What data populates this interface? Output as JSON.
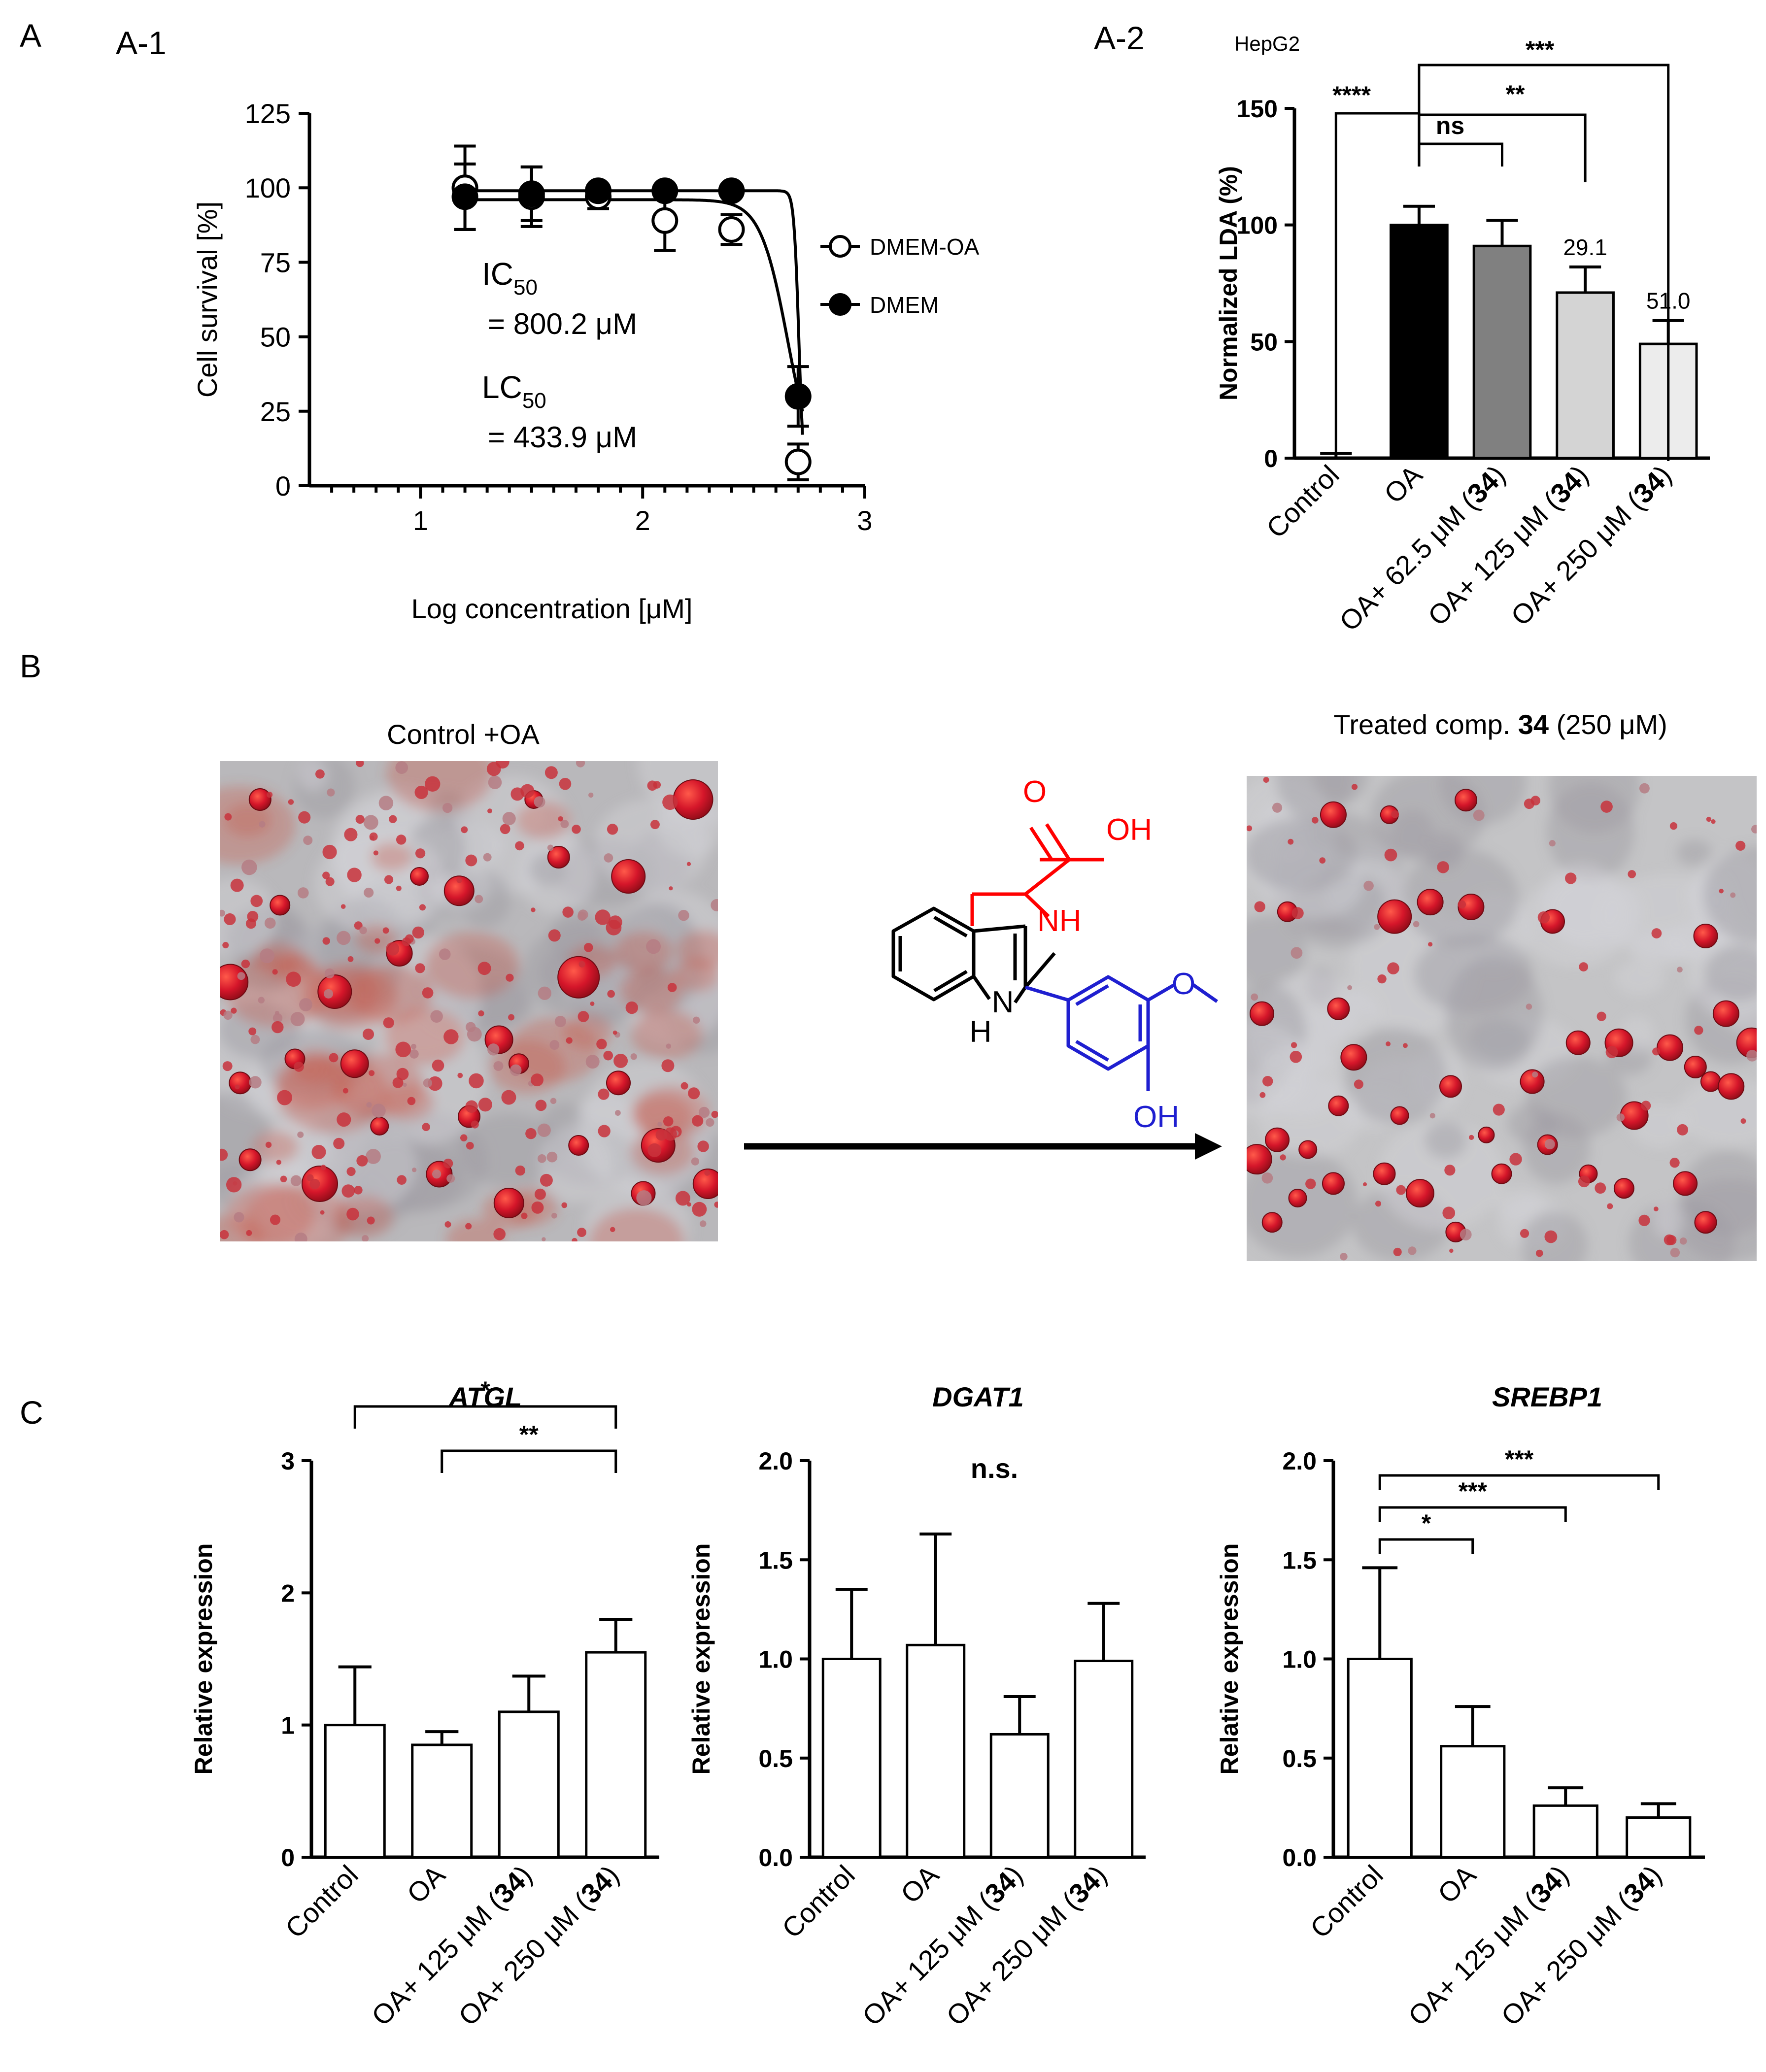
{
  "panels": {
    "A": "A",
    "A1": "A-1",
    "A2": "A-2",
    "B": "B",
    "C": "C"
  },
  "chart_data": [
    {
      "id": "a1",
      "type": "scatter",
      "xlabel": "Log concentration [μM]",
      "ylabel": "Cell survival [%]",
      "xlim": [
        0.5,
        3.0
      ],
      "ylim": [
        0,
        125
      ],
      "xticks": [
        "1",
        "2",
        "3"
      ],
      "yticks": [
        "0",
        "25",
        "50",
        "75",
        "100",
        "125"
      ],
      "grid": false,
      "legend_position": "right",
      "series": [
        {
          "name": "DMEM-OA",
          "marker": "open-circle",
          "x": [
            1.2,
            1.5,
            1.8,
            2.1,
            2.4,
            2.7
          ],
          "y": [
            100,
            97,
            97,
            89,
            86,
            8
          ],
          "err": [
            14,
            10,
            4,
            10,
            5,
            6
          ]
        },
        {
          "name": "DMEM",
          "marker": "filled-circle",
          "x": [
            1.2,
            1.5,
            1.8,
            2.1,
            2.4,
            2.7
          ],
          "y": [
            97,
            98,
            99,
            99,
            99,
            30
          ],
          "err": [
            11,
            9,
            2,
            2,
            2,
            10
          ]
        }
      ],
      "annotations": {
        "ic_label": "IC",
        "ic_sub": "50",
        "ic_value": "= 800.2 μM",
        "lc_label": "LC",
        "lc_sub": "50",
        "lc_value": "= 433.9 μM"
      }
    },
    {
      "id": "a2",
      "type": "bar",
      "title": "HepG2",
      "ylabel": "Normalized LDA (%)",
      "ylim": [
        0,
        150
      ],
      "yticks": [
        "0",
        "50",
        "100",
        "150"
      ],
      "categories": [
        "Control",
        "OA",
        "OA+ 62.5 μM (34)",
        "OA+ 125 μM (34)",
        "OA+ 250 μM (34)"
      ],
      "category_parts": [
        [
          "Control",
          "",
          ""
        ],
        [
          "OA",
          "",
          ""
        ],
        [
          "OA+ 62.5 μM (",
          "34",
          ")"
        ],
        [
          "OA+ 125 μM (",
          "34",
          ")"
        ],
        [
          "OA+ 250 μM (",
          "34",
          ")"
        ]
      ],
      "values": [
        0,
        100,
        91,
        71,
        49
      ],
      "errors": [
        2,
        8,
        11,
        11,
        10
      ],
      "bar_colors": [
        "#ffffff",
        "#000000",
        "#808080",
        "#d4d4d4",
        "#ececec"
      ],
      "data_labels": [
        "",
        "",
        "",
        "29.1",
        "51.0"
      ],
      "significance": [
        {
          "from": 0,
          "to": 1,
          "label": "****"
        },
        {
          "from": 1,
          "to": 2,
          "label": "ns"
        },
        {
          "from": 1,
          "to": 3,
          "label": "**"
        },
        {
          "from": 1,
          "to": 4,
          "label": "***"
        }
      ]
    },
    {
      "id": "c1",
      "type": "bar",
      "title": "ATGL",
      "ylabel": "Relative expression",
      "ylim": [
        0,
        3
      ],
      "yticks": [
        "0",
        "1",
        "2",
        "3"
      ],
      "categories": [
        "Control",
        "OA",
        "OA+ 125 μM (34)",
        "OA+ 250 μM (34)"
      ],
      "category_parts": [
        [
          "Control",
          "",
          ""
        ],
        [
          "OA",
          "",
          ""
        ],
        [
          "OA+ 125 μM (",
          "34",
          ")"
        ],
        [
          "OA+ 250 μM (",
          "34",
          ")"
        ]
      ],
      "values": [
        1.0,
        0.85,
        1.1,
        1.55
      ],
      "errors": [
        0.44,
        0.1,
        0.27,
        0.25
      ],
      "significance": [
        {
          "from": 0,
          "to": 3,
          "label": "*"
        },
        {
          "from": 1,
          "to": 3,
          "label": "**"
        }
      ]
    },
    {
      "id": "c2",
      "type": "bar",
      "title": "DGAT1",
      "ylabel": "Relative expression",
      "ylim": [
        0,
        2.0
      ],
      "yticks": [
        "0.0",
        "0.5",
        "1.0",
        "1.5",
        "2.0"
      ],
      "categories": [
        "Control",
        "OA",
        "OA+ 125 μM (34)",
        "OA+ 250 μM (34)"
      ],
      "category_parts": [
        [
          "Control",
          "",
          ""
        ],
        [
          "OA",
          "",
          ""
        ],
        [
          "OA+ 125 μM (",
          "34",
          ")"
        ],
        [
          "OA+ 250 μM (",
          "34",
          ")"
        ]
      ],
      "values": [
        1.0,
        1.07,
        0.62,
        0.99
      ],
      "errors": [
        0.35,
        0.56,
        0.19,
        0.29
      ],
      "annotation": "n.s.",
      "significance": []
    },
    {
      "id": "c3",
      "type": "bar",
      "title": "SREBP1",
      "ylabel": "Relative expression",
      "ylim": [
        0,
        2.0
      ],
      "yticks": [
        "0.0",
        "0.5",
        "1.0",
        "1.5",
        "2.0"
      ],
      "categories": [
        "Control",
        "OA",
        "OA+ 125 μM (34)",
        "OA+ 250 μM (34)"
      ],
      "category_parts": [
        [
          "Control",
          "",
          ""
        ],
        [
          "OA",
          "",
          ""
        ],
        [
          "OA+ 125 μM (",
          "34",
          ")"
        ],
        [
          "OA+ 250 μM (",
          "34",
          ")"
        ]
      ],
      "values": [
        1.0,
        0.56,
        0.26,
        0.2
      ],
      "errors": [
        0.46,
        0.2,
        0.09,
        0.07
      ],
      "significance": [
        {
          "from": 0,
          "to": 1,
          "label": "*"
        },
        {
          "from": 0,
          "to": 2,
          "label": "***"
        },
        {
          "from": 0,
          "to": 3,
          "label": "***"
        }
      ]
    }
  ],
  "images": {
    "left_caption": "Control +OA",
    "right_caption_pre": "Treated comp. ",
    "right_caption_bold": "34",
    "right_caption_post": " (250 μM)"
  },
  "molecule": {
    "carbonyl_o": "O",
    "acid_oh": "OH",
    "ring_nh": "NH",
    "indole_n": "N",
    "indole_h": "H",
    "phenol_oh": "OH",
    "methoxy_o": "O",
    "colors": {
      "acid_ring": "#ff0000",
      "aryl": "#1f1fd0",
      "core": "#000000"
    }
  }
}
